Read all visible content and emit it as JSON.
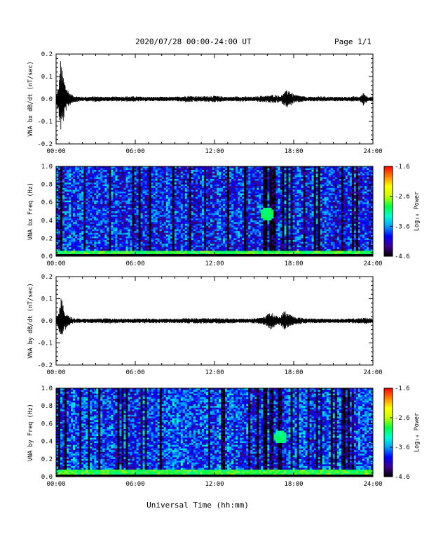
{
  "header": {
    "title": "2020/07/28  00:00-24:00 UT",
    "page": "Page 1/1"
  },
  "footer": {
    "xlabel": "Universal Time (hh:mm)"
  },
  "chart_data": [
    {
      "type": "line",
      "ylabel": "VNA bx dB/dt (nT/sec)",
      "xlim": [
        0,
        24
      ],
      "ylim": [
        -0.2,
        0.2
      ],
      "xticks": [
        "00:00",
        "06:00",
        "12:00",
        "18:00",
        "24:00"
      ],
      "yticks": [
        "0.2",
        "0.1",
        "0.0",
        "-0.1",
        "-0.2"
      ],
      "series_color": "#000000",
      "envelope": {
        "x": [
          0,
          0.2,
          0.35,
          0.5,
          0.7,
          1.0,
          1.3,
          2,
          3,
          4,
          5,
          6,
          7,
          8,
          9,
          10,
          11,
          12,
          13,
          14,
          15,
          15.5,
          16,
          16.5,
          17,
          17.3,
          17.6,
          18,
          18.5,
          19,
          20,
          21,
          22,
          22.5,
          23,
          23.3,
          23.6,
          24
        ],
        "upper": [
          0.01,
          0.06,
          0.18,
          0.12,
          0.07,
          0.03,
          0.015,
          0.01,
          0.012,
          0.01,
          0.012,
          0.012,
          0.01,
          0.01,
          0.01,
          0.015,
          0.012,
          0.015,
          0.01,
          0.012,
          0.01,
          0.015,
          0.015,
          0.02,
          0.015,
          0.03,
          0.045,
          0.02,
          0.015,
          0.01,
          0.012,
          0.01,
          0.01,
          0.012,
          0.01,
          0.03,
          0.012,
          0.01
        ],
        "lower": [
          -0.01,
          -0.08,
          -0.15,
          -0.12,
          -0.06,
          -0.03,
          -0.015,
          -0.01,
          -0.012,
          -0.01,
          -0.012,
          -0.012,
          -0.01,
          -0.01,
          -0.01,
          -0.015,
          -0.012,
          -0.015,
          -0.01,
          -0.012,
          -0.01,
          -0.015,
          -0.015,
          -0.02,
          -0.015,
          -0.03,
          -0.04,
          -0.02,
          -0.015,
          -0.01,
          -0.012,
          -0.01,
          -0.01,
          -0.012,
          -0.01,
          -0.03,
          -0.012,
          -0.01
        ]
      }
    },
    {
      "type": "heatmap",
      "ylabel": "VNA bx Freq (Hz)",
      "colorbar_label": "Log₁₀ Power",
      "xlim": [
        0,
        24
      ],
      "ylim": [
        0,
        1.0
      ],
      "zlim": [
        -4.6,
        -1.6
      ],
      "xticks": [
        "00:00",
        "06:00",
        "12:00",
        "18:00",
        "24:00"
      ],
      "yticks": [
        "1.0",
        "0.8",
        "0.6",
        "0.4",
        "0.2",
        "0.0"
      ],
      "colorbar_ticks": [
        "-1.6",
        "-2.6",
        "-3.6",
        "-4.6"
      ],
      "colormap": [
        "#000000",
        "#3d008f",
        "#0000ff",
        "#00a0ff",
        "#00ffd0",
        "#00ff40",
        "#c8ff00",
        "#ffff00",
        "#ff8000",
        "#ff0000"
      ],
      "background_level": -3.9,
      "low_freq_enhancement": {
        "freq_max": 0.06,
        "level": -2.9
      },
      "feature": {
        "time": 16.0,
        "freq": 0.47,
        "level": -3.0
      }
    },
    {
      "type": "line",
      "ylabel": "VNA by dB/dt (nT/sec)",
      "xlim": [
        0,
        24
      ],
      "ylim": [
        -0.2,
        0.2
      ],
      "xticks": [
        "00:00",
        "06:00",
        "12:00",
        "18:00",
        "24:00"
      ],
      "yticks": [
        "0.2",
        "0.1",
        "0.0",
        "-0.1",
        "-0.2"
      ],
      "series_color": "#000000",
      "envelope": {
        "x": [
          0,
          0.2,
          0.4,
          0.6,
          0.9,
          1.3,
          2,
          3,
          4,
          5,
          6,
          7,
          8,
          9,
          10,
          11,
          12,
          13,
          14,
          15,
          15.6,
          16,
          16.3,
          16.6,
          17,
          17.3,
          17.6,
          18,
          18.5,
          19,
          20,
          21,
          22,
          23,
          23.5,
          24
        ],
        "upper": [
          0.01,
          0.05,
          0.11,
          0.05,
          0.025,
          0.012,
          0.01,
          0.01,
          0.012,
          0.01,
          0.01,
          0.012,
          0.01,
          0.01,
          0.012,
          0.012,
          0.012,
          0.012,
          0.01,
          0.012,
          0.015,
          0.03,
          0.04,
          0.025,
          0.02,
          0.05,
          0.035,
          0.02,
          0.015,
          0.012,
          0.01,
          0.01,
          0.01,
          0.012,
          0.015,
          0.01
        ],
        "lower": [
          -0.01,
          -0.05,
          -0.08,
          -0.05,
          -0.025,
          -0.012,
          -0.01,
          -0.01,
          -0.012,
          -0.01,
          -0.01,
          -0.012,
          -0.01,
          -0.01,
          -0.012,
          -0.012,
          -0.012,
          -0.012,
          -0.01,
          -0.012,
          -0.015,
          -0.03,
          -0.04,
          -0.025,
          -0.02,
          -0.045,
          -0.03,
          -0.02,
          -0.015,
          -0.012,
          -0.01,
          -0.01,
          -0.01,
          -0.012,
          -0.015,
          -0.01
        ]
      }
    },
    {
      "type": "heatmap",
      "ylabel": "VNA by Freq (Hz)",
      "colorbar_label": "Log₁₀ Power",
      "xlim": [
        0,
        24
      ],
      "ylim": [
        0,
        1.0
      ],
      "zlim": [
        -4.6,
        -1.6
      ],
      "xticks": [
        "00:00",
        "06:00",
        "12:00",
        "18:00",
        "24:00"
      ],
      "yticks": [
        "1.0",
        "0.8",
        "0.6",
        "0.4",
        "0.2",
        "0.0"
      ],
      "colorbar_ticks": [
        "-1.6",
        "-2.6",
        "-3.6",
        "-4.6"
      ],
      "colormap": [
        "#000000",
        "#3d008f",
        "#0000ff",
        "#00a0ff",
        "#00ffd0",
        "#00ff40",
        "#c8ff00",
        "#ffff00",
        "#ff8000",
        "#ff0000"
      ],
      "background_level": -3.8,
      "low_freq_enhancement": {
        "freq_max": 0.08,
        "level": -2.9
      },
      "feature": {
        "time": 17.0,
        "freq": 0.45,
        "level": -3.1
      }
    }
  ]
}
